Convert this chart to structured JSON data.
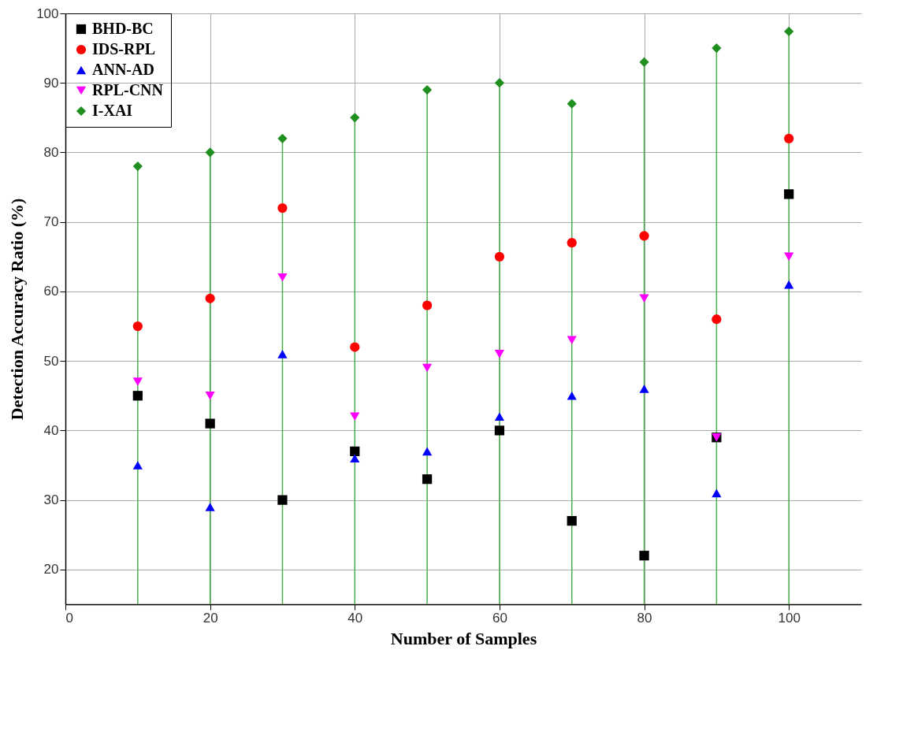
{
  "chart_data": {
    "type": "scatter",
    "xlabel": "Number of Samples",
    "ylabel": "Detection Accuracy Ratio (%)",
    "x": [
      10,
      20,
      30,
      40,
      50,
      60,
      70,
      80,
      90,
      100
    ],
    "xlim": [
      0,
      110
    ],
    "xticks": [
      0,
      20,
      40,
      60,
      80,
      100
    ],
    "ylim": [
      15,
      100
    ],
    "yticks": [
      20,
      30,
      40,
      50,
      60,
      70,
      80,
      90,
      100
    ],
    "grid": true,
    "legend": "top left",
    "series": [
      {
        "name": "BHD-BC",
        "color": "#000000",
        "marker": "square",
        "values": [
          45,
          41,
          30,
          37,
          33,
          40,
          27,
          22,
          39,
          74
        ]
      },
      {
        "name": "IDS-RPL",
        "color": "#ff0000",
        "marker": "circle",
        "values": [
          55,
          59,
          72,
          52,
          58,
          65,
          67,
          68,
          56,
          82
        ]
      },
      {
        "name": "ANN-AD",
        "color": "#0000ff",
        "marker": "triangle",
        "values": [
          35,
          29,
          51,
          36,
          37,
          42,
          45,
          46,
          31,
          61
        ]
      },
      {
        "name": "RPL-CNN",
        "color": "#ff00ff",
        "marker": "triangle-down",
        "values": [
          47,
          45,
          62,
          42,
          49,
          51,
          53,
          59,
          39,
          65
        ]
      },
      {
        "name": "I-XAI",
        "type": "lollipop",
        "color": "#1f8f1f",
        "marker": "diamond",
        "values": [
          78,
          80,
          82,
          85,
          89,
          90,
          87,
          93,
          95,
          97.4
        ]
      }
    ]
  }
}
